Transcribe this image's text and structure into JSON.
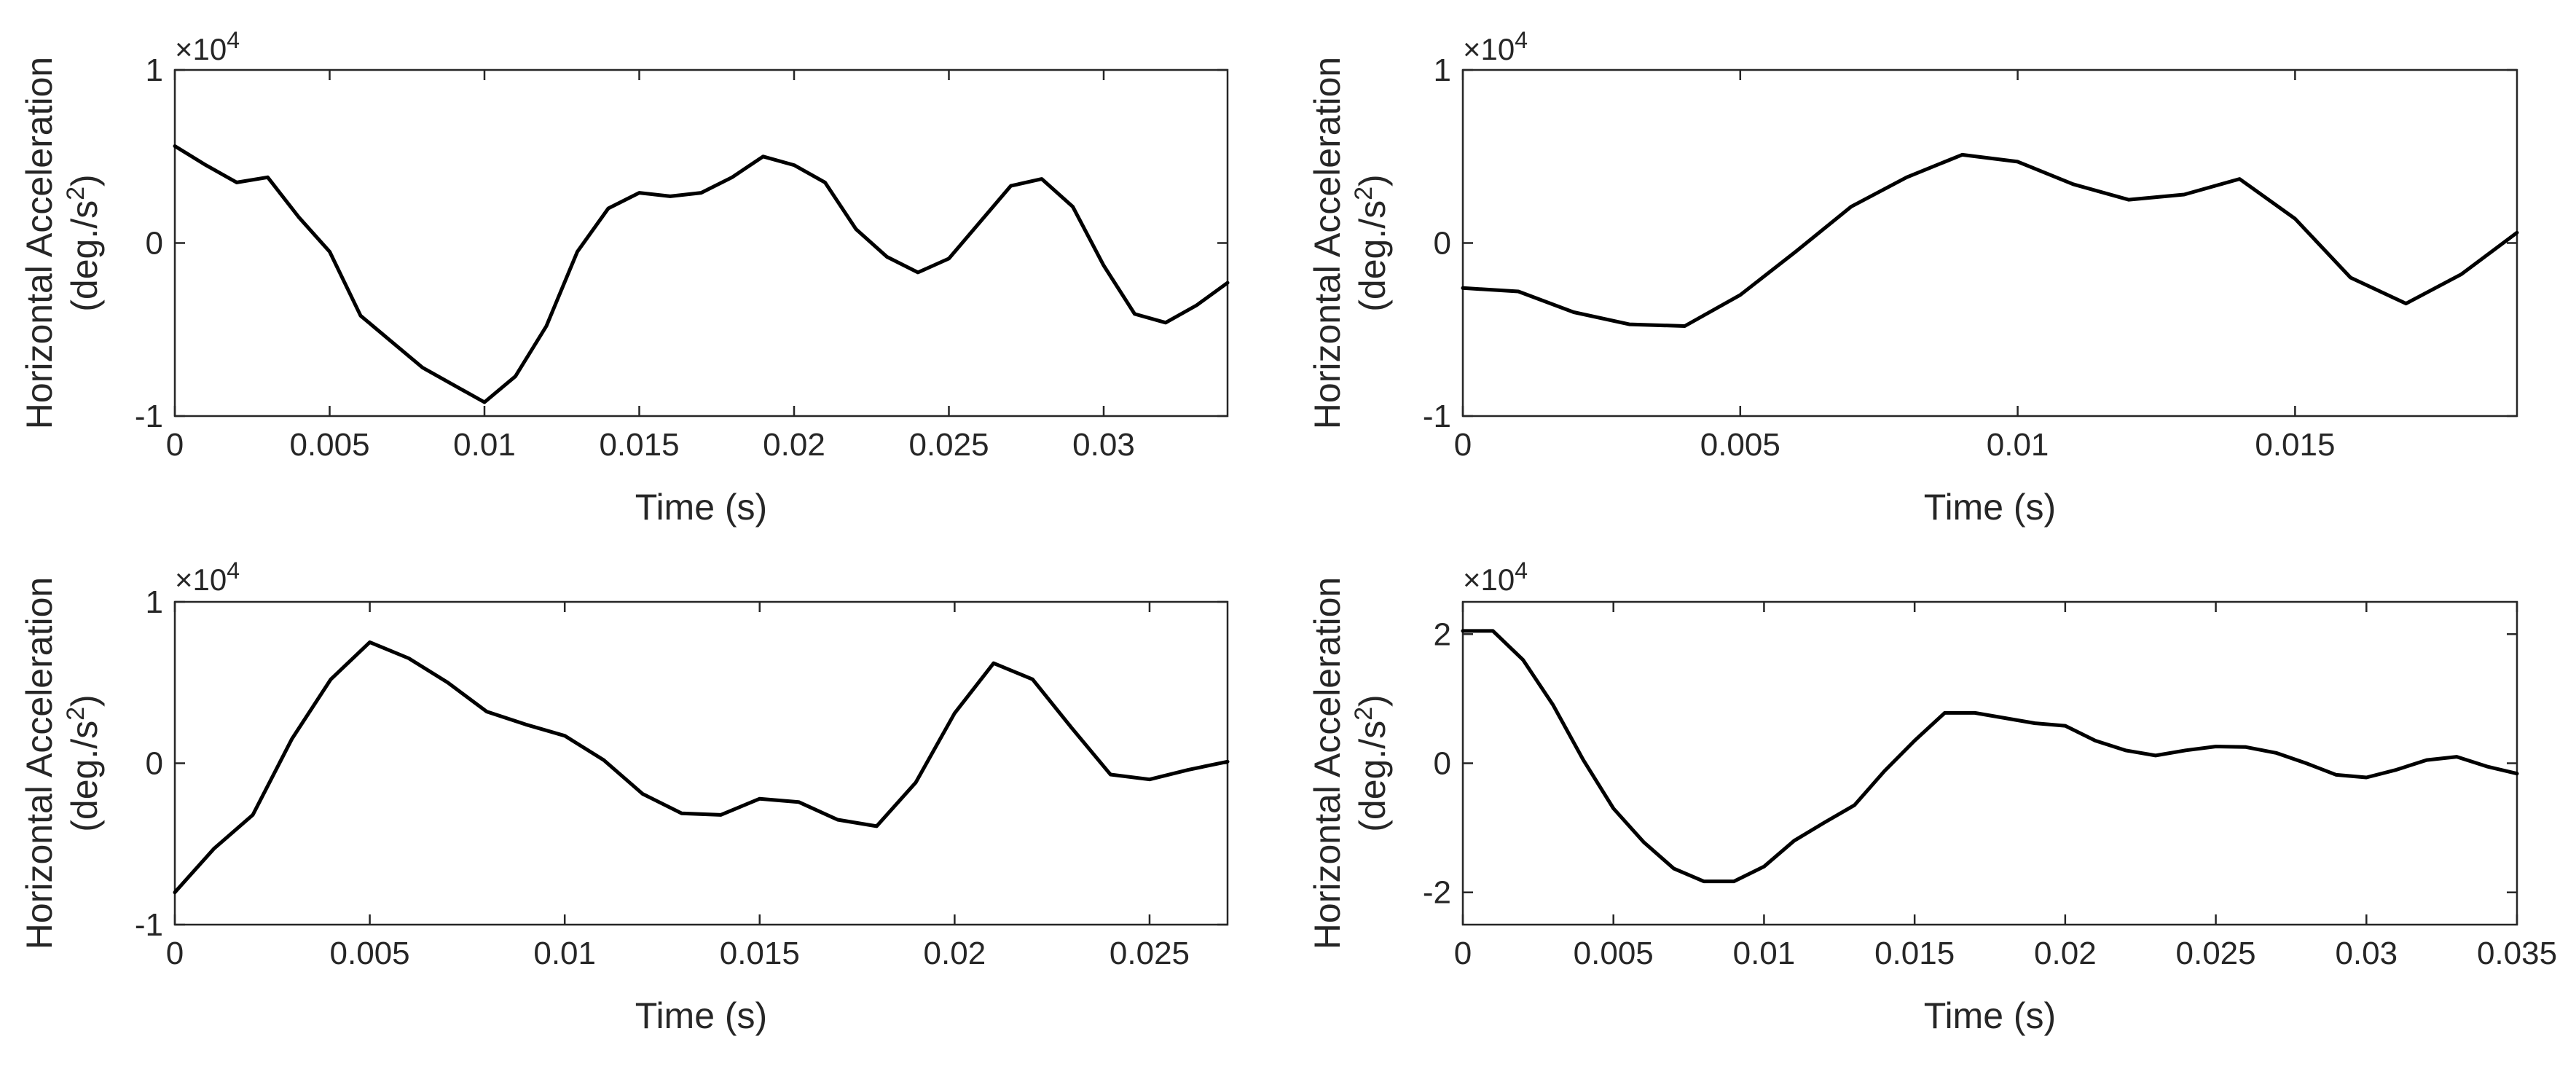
{
  "chart_data": [
    {
      "type": "line",
      "title": "",
      "xlabel": "Time (s)",
      "ylabel": "Horizontal Acceleration",
      "ylabel_units_prefix": "(deg./s",
      "ylabel_units_exp": "2",
      "ylabel_units_suffix": ")",
      "multiplier_base": "×10",
      "multiplier_exp": "4",
      "xlim": [
        0,
        0.034
      ],
      "ylim": [
        -1,
        1
      ],
      "xticks": [
        0,
        0.005,
        0.01,
        0.015,
        0.02,
        0.025,
        0.03
      ],
      "xtick_labels": [
        "0",
        "0.005",
        "0.01",
        "0.015",
        "0.02",
        "0.025",
        "0.03"
      ],
      "yticks": [
        -1,
        0,
        1
      ],
      "ytick_labels": [
        "-1",
        "0",
        "1"
      ],
      "grid": false,
      "series": [
        {
          "name": "acceleration",
          "color": "#000000",
          "x": [
            0,
            0.001,
            0.002,
            0.003,
            0.004,
            0.005,
            0.006,
            0.007,
            0.008,
            0.009,
            0.01,
            0.011,
            0.012,
            0.013,
            0.014,
            0.015,
            0.016,
            0.017,
            0.018,
            0.019,
            0.02,
            0.021,
            0.022,
            0.023,
            0.024,
            0.025,
            0.026,
            0.027,
            0.028,
            0.029,
            0.03,
            0.031,
            0.032,
            0.033,
            0.034
          ],
          "y": [
            0.56,
            0.45,
            0.35,
            0.38,
            0.15,
            -0.05,
            -0.42,
            -0.57,
            -0.72,
            -0.82,
            -0.92,
            -0.77,
            -0.48,
            -0.05,
            0.2,
            0.29,
            0.27,
            0.29,
            0.38,
            0.5,
            0.45,
            0.35,
            0.08,
            -0.08,
            -0.17,
            -0.09,
            0.12,
            0.33,
            0.37,
            0.21,
            -0.13,
            -0.41,
            -0.46,
            -0.36,
            -0.23
          ]
        }
      ]
    },
    {
      "type": "line",
      "title": "",
      "xlabel": "Time (s)",
      "ylabel": "Horizontal Acceleration",
      "ylabel_units_prefix": "(deg./s",
      "ylabel_units_exp": "2",
      "ylabel_units_suffix": ")",
      "multiplier_base": "×10",
      "multiplier_exp": "4",
      "xlim": [
        0,
        0.019
      ],
      "ylim": [
        -1,
        1
      ],
      "xticks": [
        0,
        0.005,
        0.01,
        0.015
      ],
      "xtick_labels": [
        "0",
        "0.005",
        "0.01",
        "0.015"
      ],
      "yticks": [
        -1,
        0,
        1
      ],
      "ytick_labels": [
        "-1",
        "0",
        "1"
      ],
      "grid": false,
      "series": [
        {
          "name": "acceleration",
          "color": "#000000",
          "x": [
            0,
            0.001,
            0.002,
            0.003,
            0.004,
            0.005,
            0.006,
            0.007,
            0.008,
            0.009,
            0.01,
            0.011,
            0.012,
            0.013,
            0.014,
            0.015,
            0.016,
            0.017,
            0.018,
            0.019
          ],
          "y": [
            -0.26,
            -0.28,
            -0.4,
            -0.47,
            -0.48,
            -0.3,
            -0.05,
            0.21,
            0.38,
            0.51,
            0.47,
            0.34,
            0.25,
            0.28,
            0.37,
            0.14,
            -0.2,
            -0.35,
            -0.18,
            0.06
          ]
        }
      ]
    },
    {
      "type": "line",
      "title": "",
      "xlabel": "Time (s)",
      "ylabel": "Horizontal Acceleration",
      "ylabel_units_prefix": "(deg./s",
      "ylabel_units_exp": "2",
      "ylabel_units_suffix": ")",
      "multiplier_base": "×10",
      "multiplier_exp": "4",
      "xlim": [
        0,
        0.027
      ],
      "ylim": [
        -1,
        1
      ],
      "xticks": [
        0,
        0.005,
        0.01,
        0.015,
        0.02,
        0.025
      ],
      "xtick_labels": [
        "0",
        "0.005",
        "0.01",
        "0.015",
        "0.02",
        "0.025"
      ],
      "yticks": [
        -1,
        0,
        1
      ],
      "ytick_labels": [
        "-1",
        "0",
        "1"
      ],
      "grid": false,
      "series": [
        {
          "name": "acceleration",
          "color": "#000000",
          "x": [
            0,
            0.001,
            0.002,
            0.003,
            0.004,
            0.005,
            0.006,
            0.007,
            0.008,
            0.009,
            0.01,
            0.011,
            0.012,
            0.013,
            0.014,
            0.015,
            0.016,
            0.017,
            0.018,
            0.019,
            0.02,
            0.021,
            0.022,
            0.023,
            0.024,
            0.025,
            0.026,
            0.027
          ],
          "y": [
            -0.8,
            -0.53,
            -0.32,
            0.15,
            0.52,
            0.75,
            0.65,
            0.5,
            0.32,
            0.24,
            0.17,
            0.02,
            -0.19,
            -0.31,
            -0.32,
            -0.22,
            -0.24,
            -0.35,
            -0.39,
            -0.12,
            0.31,
            0.62,
            0.52,
            0.22,
            -0.07,
            -0.1,
            -0.04,
            0.01
          ]
        }
      ]
    },
    {
      "type": "line",
      "title": "",
      "xlabel": "Time (s)",
      "ylabel": "Horizontal Acceleration",
      "ylabel_units_prefix": "(deg./s",
      "ylabel_units_exp": "2",
      "ylabel_units_suffix": ")",
      "multiplier_base": "×10",
      "multiplier_exp": "4",
      "xlim": [
        0,
        0.035
      ],
      "ylim": [
        -2.5,
        2.5
      ],
      "xticks": [
        0,
        0.005,
        0.01,
        0.015,
        0.02,
        0.025,
        0.03,
        0.035
      ],
      "xtick_labels": [
        "0",
        "0.005",
        "0.01",
        "0.015",
        "0.02",
        "0.025",
        "0.03",
        "0.035"
      ],
      "yticks": [
        -2,
        0,
        2
      ],
      "ytick_labels": [
        "-2",
        "0",
        "2"
      ],
      "grid": false,
      "series": [
        {
          "name": "acceleration",
          "color": "#000000",
          "x": [
            0,
            0.001,
            0.002,
            0.003,
            0.004,
            0.005,
            0.006,
            0.007,
            0.008,
            0.009,
            0.01,
            0.011,
            0.012,
            0.013,
            0.014,
            0.015,
            0.016,
            0.017,
            0.018,
            0.019,
            0.02,
            0.021,
            0.022,
            0.023,
            0.024,
            0.025,
            0.026,
            0.027,
            0.028,
            0.029,
            0.03,
            0.031,
            0.032,
            0.033,
            0.034,
            0.035
          ],
          "y": [
            2.05,
            2.05,
            1.6,
            0.9,
            0.05,
            -0.7,
            -1.22,
            -1.63,
            -1.83,
            -1.83,
            -1.6,
            -1.2,
            -0.92,
            -0.65,
            -0.12,
            0.35,
            0.78,
            0.78,
            0.7,
            0.62,
            0.58,
            0.35,
            0.2,
            0.12,
            0.2,
            0.26,
            0.25,
            0.16,
            0.0,
            -0.18,
            -0.22,
            -0.1,
            0.05,
            0.1,
            -0.05,
            -0.16
          ]
        }
      ]
    }
  ]
}
